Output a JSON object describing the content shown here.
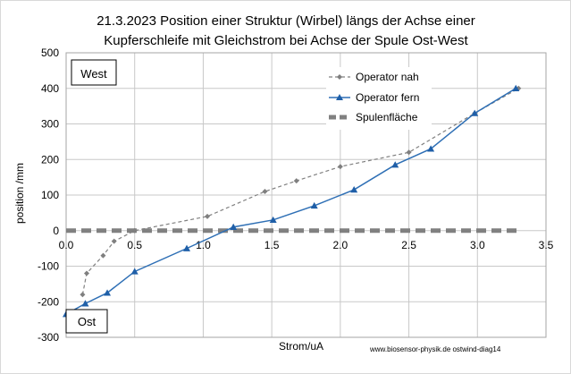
{
  "chart_data": {
    "type": "line",
    "title_line1": "21.3.2023 Position einer Struktur (Wirbel) längs der Achse einer",
    "title_line2": "Kupferschleife mit Gleichstrom  bei Achse der Spule Ost-West",
    "xlabel": "Strom/uA",
    "ylabel": "position /mm",
    "xlim": [
      0,
      3.5
    ],
    "ylim": [
      -300,
      500
    ],
    "xticks": [
      "0.0",
      "0.5",
      "1.0",
      "1.5",
      "2.0",
      "2.5",
      "3.0",
      "3.5"
    ],
    "yticks": [
      "500",
      "400",
      "300",
      "200",
      "100",
      "0",
      "-100",
      "-200",
      "-300"
    ],
    "grid": true,
    "legend_position": "top-right",
    "series": [
      {
        "name": "Operator nah",
        "color": "#808080",
        "style": "dashed-diamond",
        "x": [
          0.12,
          0.15,
          0.27,
          0.35,
          0.5,
          1.03,
          1.45,
          1.68,
          2.0,
          2.5,
          2.98,
          3.3
        ],
        "y": [
          -180,
          -120,
          -70,
          -30,
          0,
          40,
          110,
          140,
          180,
          220,
          330,
          400
        ]
      },
      {
        "name": "Operator fern",
        "color": "#2e6fb5",
        "style": "solid-triangle",
        "x": [
          0.0,
          0.14,
          0.3,
          0.5,
          0.88,
          1.22,
          1.51,
          1.81,
          2.1,
          2.4,
          2.66,
          2.98,
          3.28
        ],
        "y": [
          -235,
          -205,
          -175,
          -115,
          -50,
          10,
          30,
          70,
          115,
          185,
          230,
          330,
          400
        ]
      },
      {
        "name": "Spulenfläche",
        "color": "#808080",
        "style": "thick-dashed",
        "x": [
          0.0,
          3.3
        ],
        "y": [
          0,
          0
        ]
      }
    ]
  },
  "labels": {
    "west": "West",
    "ost": "Ost",
    "credit": "www.biosensor-physik.de  ostwind-diag14"
  }
}
